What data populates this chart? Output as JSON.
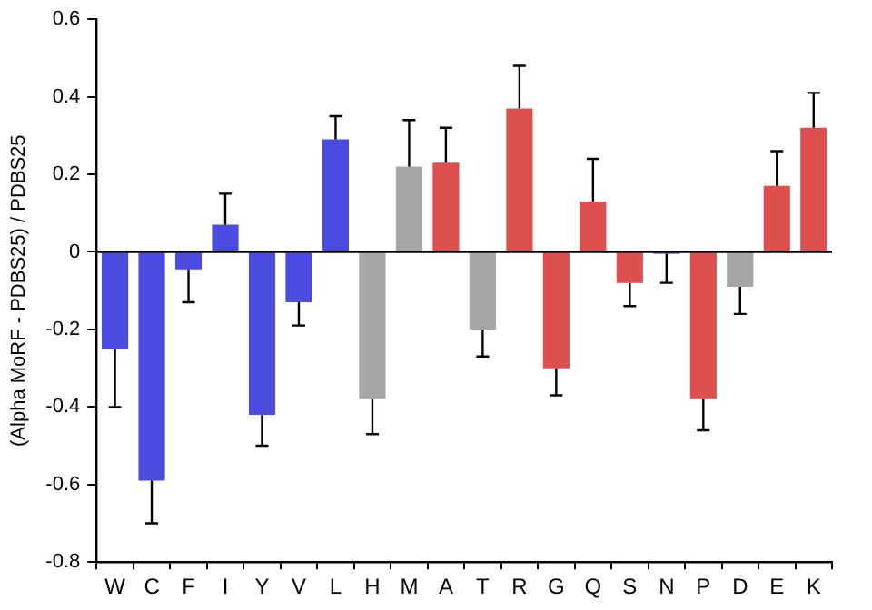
{
  "chart_data": {
    "type": "bar",
    "ylabel": "(Alpha MoRF - PDBS25) / PDBS25",
    "categories": [
      "W",
      "C",
      "F",
      "I",
      "Y",
      "V",
      "L",
      "H",
      "M",
      "A",
      "T",
      "R",
      "G",
      "Q",
      "S",
      "N",
      "P",
      "D",
      "E",
      "K"
    ],
    "values": [
      -0.25,
      -0.59,
      -0.045,
      0.07,
      -0.42,
      -0.13,
      0.29,
      -0.38,
      0.22,
      0.23,
      -0.2,
      0.37,
      -0.3,
      0.13,
      -0.08,
      -0.005,
      -0.38,
      -0.09,
      0.17,
      0.32
    ],
    "errors": [
      [
        -0.4,
        -0.25
      ],
      [
        -0.7,
        -0.59
      ],
      [
        -0.13,
        -0.045
      ],
      [
        0.07,
        0.15
      ],
      [
        -0.5,
        -0.42
      ],
      [
        -0.19,
        -0.13
      ],
      [
        0.29,
        0.35
      ],
      [
        -0.47,
        -0.38
      ],
      [
        0.22,
        0.34
      ],
      [
        0.23,
        0.32
      ],
      [
        -0.27,
        -0.2
      ],
      [
        0.37,
        0.48
      ],
      [
        -0.37,
        -0.3
      ],
      [
        0.13,
        0.24
      ],
      [
        -0.14,
        -0.08
      ],
      [
        -0.08,
        -0.005
      ],
      [
        -0.46,
        -0.38
      ],
      [
        -0.16,
        -0.09
      ],
      [
        0.17,
        0.26
      ],
      [
        0.32,
        0.41
      ]
    ],
    "colors": [
      "#4b4bdf",
      "#4b4bdf",
      "#4b4bdf",
      "#4b4bdf",
      "#4b4bdf",
      "#4b4bdf",
      "#4b4bdf",
      "#a6a6a6",
      "#a6a6a6",
      "#de5050",
      "#a6a6a6",
      "#de5050",
      "#de5050",
      "#de5050",
      "#de5050",
      "#4b4bdf",
      "#de5050",
      "#a6a6a6",
      "#de5050",
      "#de5050"
    ],
    "ylim": [
      -0.8,
      0.6
    ],
    "yticks": [
      -0.8,
      -0.6,
      -0.4,
      -0.2,
      0,
      0.2,
      0.4,
      0.6
    ],
    "ref_lines": [
      {
        "axis": "y",
        "value": 0,
        "color": "#000000"
      }
    ],
    "grid": false,
    "legend": false
  }
}
